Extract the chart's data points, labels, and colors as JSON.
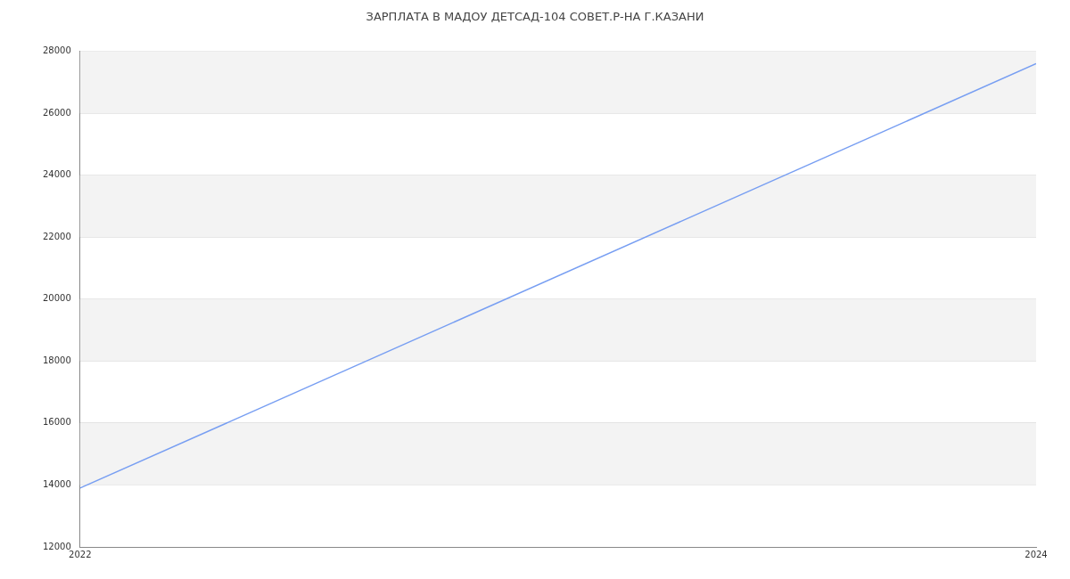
{
  "chart_data": {
    "type": "line",
    "title": "ЗАРПЛАТА В МАДОУ ДЕТСАД-104 СОВЕТ.Р-НА Г.КАЗАНИ",
    "x": [
      2022,
      2024
    ],
    "series": [
      {
        "color": "#779ef2",
        "values": [
          13900,
          27600
        ]
      }
    ],
    "xlim": [
      2022,
      2024
    ],
    "xticks": [
      2022,
      2024
    ],
    "ylim": [
      12000,
      28000
    ],
    "yticks": [
      12000,
      14000,
      16000,
      18000,
      20000,
      22000,
      24000,
      26000,
      28000
    ],
    "grid": "y",
    "marker": "none",
    "line_style": "solid",
    "legend": false
  }
}
